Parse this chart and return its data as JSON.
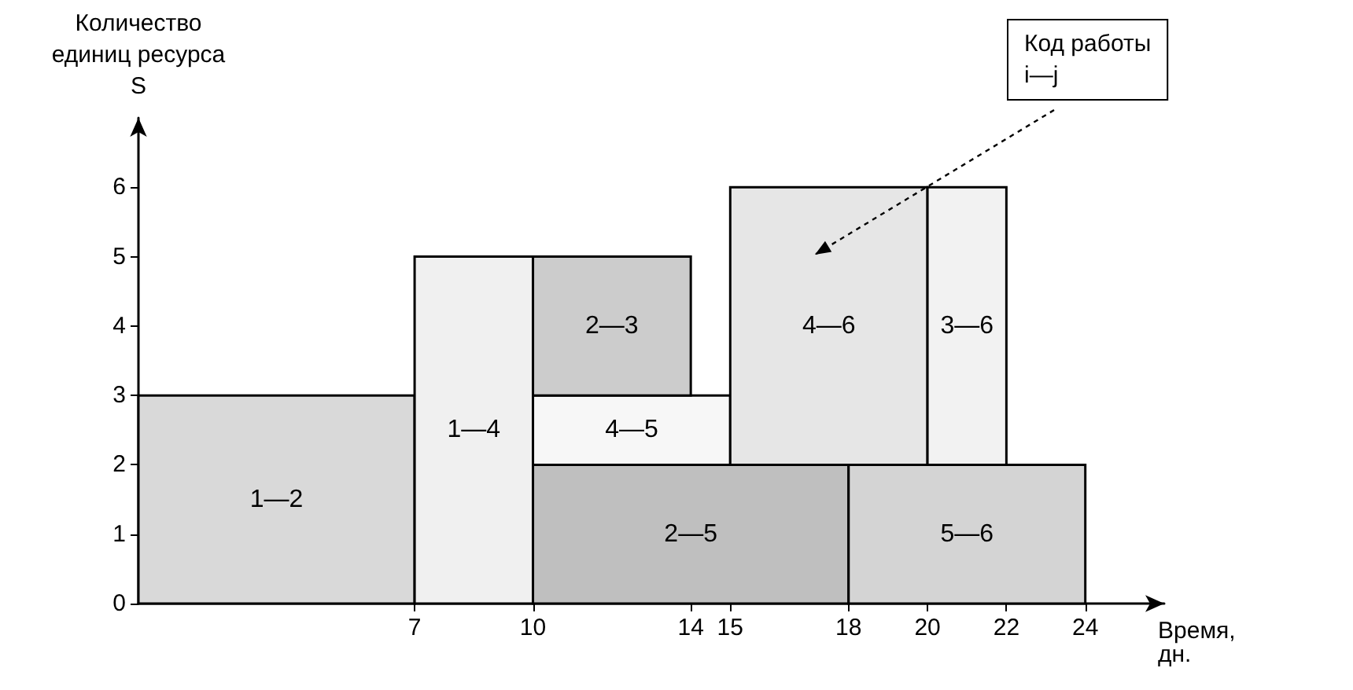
{
  "chart_data": {
    "type": "area",
    "xlabel": "Время,\nдн.",
    "ylabel": "Количество\nединиц ресурса\nS",
    "xlim": [
      0,
      26
    ],
    "ylim": [
      0,
      7
    ],
    "xticks": [
      7,
      10,
      14,
      15,
      18,
      20,
      22,
      24
    ],
    "yticks": [
      0,
      1,
      2,
      3,
      4,
      5,
      6
    ],
    "grid": false,
    "legend": false,
    "series": [
      {
        "name": "1—2",
        "color": "#d9d9d9",
        "x": [
          0,
          0,
          7,
          7
        ],
        "values": [
          0,
          3,
          3,
          0
        ]
      },
      {
        "name": "1—4",
        "color": "#f0f0f0",
        "x": [
          7,
          7,
          10,
          10
        ],
        "values": [
          0,
          5,
          5,
          0
        ]
      },
      {
        "name": "2—5",
        "color": "#bfbfbf",
        "x": [
          10,
          10,
          18,
          18
        ],
        "values": [
          0,
          2,
          2,
          0
        ]
      },
      {
        "name": "4—5",
        "color": "#f7f7f7",
        "x": [
          10,
          10,
          15,
          15
        ],
        "values": [
          2,
          3,
          3,
          2
        ]
      },
      {
        "name": "2—3",
        "color": "#cccccc",
        "x": [
          10,
          10,
          14,
          14
        ],
        "values": [
          3,
          5,
          5,
          3
        ]
      },
      {
        "name": "4—6",
        "color": "#e6e6e6",
        "x": [
          15,
          15,
          20,
          20
        ],
        "values": [
          2,
          6,
          6,
          2
        ]
      },
      {
        "name": "3—6",
        "color": "#f2f2f2",
        "x": [
          20,
          20,
          22,
          22
        ],
        "values": [
          2,
          6,
          6,
          2
        ]
      },
      {
        "name": "5—6",
        "color": "#d4d4d4",
        "x": [
          18,
          18,
          24,
          24
        ],
        "values": [
          0,
          2,
          2,
          0
        ]
      }
    ],
    "annotations": [
      "Код работы\ni—j"
    ]
  }
}
